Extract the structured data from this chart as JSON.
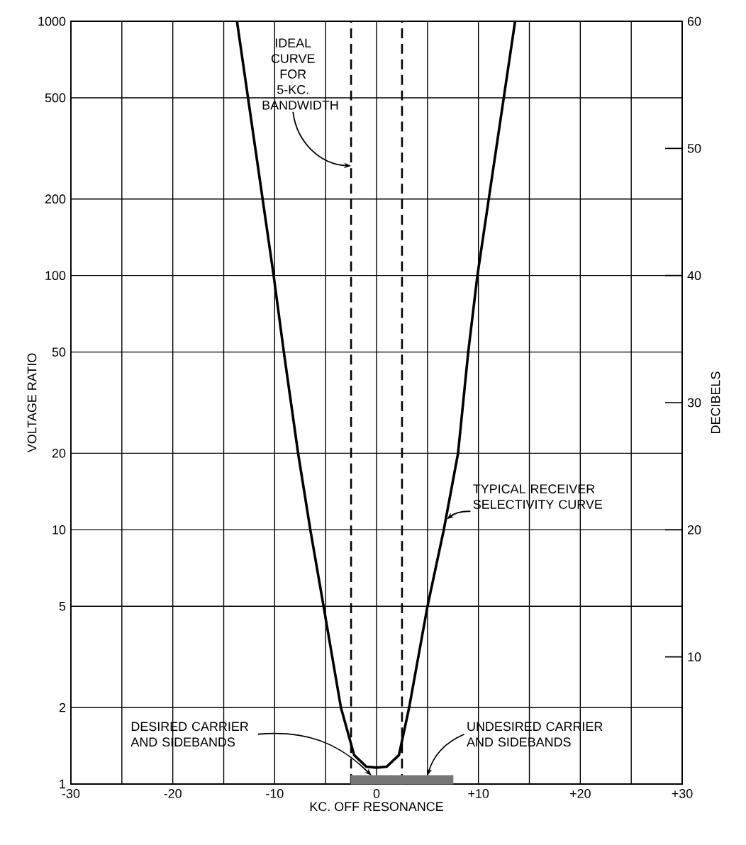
{
  "chart_data": {
    "type": "line",
    "xlabel": "KC. OFF RESONANCE",
    "ylabel": "VOLTAGE RATIO",
    "y2label": "DECIBELS",
    "log": "y",
    "grid": true,
    "xlim": [
      -30,
      30
    ],
    "xticks": [
      {
        "value": -30,
        "label": "-30"
      },
      {
        "value": -25,
        "label": null
      },
      {
        "value": -20,
        "label": "-20"
      },
      {
        "value": -15,
        "label": null
      },
      {
        "value": -10,
        "label": "-10"
      },
      {
        "value": -5,
        "label": null
      },
      0,
      {
        "value": 5,
        "label": null
      },
      {
        "value": 10,
        "label": "+10"
      },
      {
        "value": 15,
        "label": null
      },
      {
        "value": 20,
        "label": "+20"
      },
      {
        "value": 25,
        "label": null
      },
      {
        "value": 30,
        "label": "+30"
      }
    ],
    "ylim": [
      1,
      1000
    ],
    "yticks": [
      1,
      2,
      5,
      10,
      20,
      50,
      100,
      200,
      500,
      1000
    ],
    "y2lim": [
      0,
      60
    ],
    "y2ticks": [
      10,
      20,
      30,
      40,
      50,
      60
    ],
    "series": [
      {
        "color": "#000000",
        "x": [
          -13.7,
          -10.1,
          -9.1,
          -7.7,
          -6.5,
          -5.2,
          -3.5,
          -2.2,
          -1,
          0,
          1,
          2.2,
          3.2,
          5,
          6.6,
          8,
          9,
          9.9,
          13.6
        ],
        "values": [
          1000,
          100,
          50,
          20,
          10,
          5,
          2,
          1.3,
          1.17,
          1.16,
          1.17,
          1.3,
          2,
          5,
          10,
          20,
          50,
          100,
          1000
        ]
      },
      {
        "type": "bar",
        "color": "#777777",
        "x": [
          0,
          5
        ],
        "values": [
          1.08,
          1.08
        ]
      }
    ],
    "ref_lines": [
      {
        "axis": "x",
        "value": -2.5,
        "line_style": "dashed"
      },
      {
        "axis": "x",
        "value": 2.5,
        "line_style": "dashed"
      }
    ],
    "annotations": [
      {
        "text": "IDEAL CURVE FOR 5-KC. BANDWIDTH",
        "x": -2.5,
        "y": 270
      },
      {
        "text": "TYPICAL RECEIVER SELECTIVITY CURVE",
        "x": 6.9,
        "y": 11
      },
      {
        "text": "DESIRED CARRIER AND SIDEBANDS",
        "x": -0.5,
        "y": 1.08
      },
      {
        "text": "UNDESIRED CARRIER AND SIDEBANDS",
        "x": 5,
        "y": 1.08
      }
    ]
  }
}
